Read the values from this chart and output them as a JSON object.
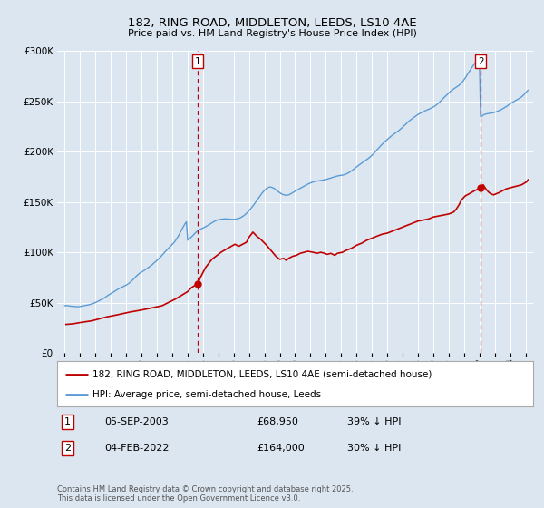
{
  "title": "182, RING ROAD, MIDDLETON, LEEDS, LS10 4AE",
  "subtitle": "Price paid vs. HM Land Registry's House Price Index (HPI)",
  "bg_color": "#dce6f0",
  "plot_bg_color": "#dce6f0",
  "hpi_color": "#5b9bd5",
  "price_color": "#c00000",
  "marker1_date_x": 2003.67,
  "marker2_date_x": 2022.08,
  "marker1_price": 68950,
  "marker2_price": 164000,
  "ylim": [
    0,
    300000
  ],
  "xlim": [
    1994.5,
    2025.5
  ],
  "yticks": [
    0,
    50000,
    100000,
    150000,
    200000,
    250000,
    300000
  ],
  "xlabel_years": [
    1995,
    1996,
    1997,
    1998,
    1999,
    2000,
    2001,
    2002,
    2003,
    2004,
    2005,
    2006,
    2007,
    2008,
    2009,
    2010,
    2011,
    2012,
    2013,
    2014,
    2015,
    2016,
    2017,
    2018,
    2019,
    2020,
    2021,
    2022,
    2023,
    2024,
    2025
  ],
  "legend_label1": "182, RING ROAD, MIDDLETON, LEEDS, LS10 4AE (semi-detached house)",
  "legend_label2": "HPI: Average price, semi-detached house, Leeds",
  "annotation1_label": "1",
  "annotation1_date": "05-SEP-2003",
  "annotation1_price_str": "£68,950",
  "annotation1_hpi": "39% ↓ HPI",
  "annotation2_label": "2",
  "annotation2_date": "04-FEB-2022",
  "annotation2_price_str": "£164,000",
  "annotation2_hpi": "30% ↓ HPI",
  "footer": "Contains HM Land Registry data © Crown copyright and database right 2025.\nThis data is licensed under the Open Government Licence v3.0.",
  "hpi_data_x": [
    1995.0,
    1995.08,
    1995.17,
    1995.25,
    1995.33,
    1995.42,
    1995.5,
    1995.58,
    1995.67,
    1995.75,
    1995.83,
    1995.92,
    1996.0,
    1996.08,
    1996.17,
    1996.25,
    1996.33,
    1996.42,
    1996.5,
    1996.58,
    1996.67,
    1996.75,
    1996.83,
    1996.92,
    1997.0,
    1997.08,
    1997.17,
    1997.25,
    1997.33,
    1997.42,
    1997.5,
    1997.58,
    1997.67,
    1997.75,
    1997.83,
    1997.92,
    1998.0,
    1998.08,
    1998.17,
    1998.25,
    1998.33,
    1998.42,
    1998.5,
    1998.58,
    1998.67,
    1998.75,
    1998.83,
    1998.92,
    1999.0,
    1999.08,
    1999.17,
    1999.25,
    1999.33,
    1999.42,
    1999.5,
    1999.58,
    1999.67,
    1999.75,
    1999.83,
    1999.92,
    2000.0,
    2000.08,
    2000.17,
    2000.25,
    2000.33,
    2000.42,
    2000.5,
    2000.58,
    2000.67,
    2000.75,
    2000.83,
    2000.92,
    2001.0,
    2001.08,
    2001.17,
    2001.25,
    2001.33,
    2001.42,
    2001.5,
    2001.58,
    2001.67,
    2001.75,
    2001.83,
    2001.92,
    2002.0,
    2002.08,
    2002.17,
    2002.25,
    2002.33,
    2002.42,
    2002.5,
    2002.58,
    2002.67,
    2002.75,
    2002.83,
    2002.92,
    2003.0,
    2003.08,
    2003.17,
    2003.25,
    2003.33,
    2003.42,
    2003.5,
    2003.58,
    2003.67,
    2003.75,
    2003.83,
    2003.92,
    2004.0,
    2004.08,
    2004.17,
    2004.25,
    2004.33,
    2004.42,
    2004.5,
    2004.58,
    2004.67,
    2004.75,
    2004.83,
    2004.92,
    2005.0,
    2005.08,
    2005.17,
    2005.25,
    2005.33,
    2005.42,
    2005.5,
    2005.58,
    2005.67,
    2005.75,
    2005.83,
    2005.92,
    2006.0,
    2006.08,
    2006.17,
    2006.25,
    2006.33,
    2006.42,
    2006.5,
    2006.58,
    2006.67,
    2006.75,
    2006.83,
    2006.92,
    2007.0,
    2007.08,
    2007.17,
    2007.25,
    2007.33,
    2007.42,
    2007.5,
    2007.58,
    2007.67,
    2007.75,
    2007.83,
    2007.92,
    2008.0,
    2008.08,
    2008.17,
    2008.25,
    2008.33,
    2008.42,
    2008.5,
    2008.58,
    2008.67,
    2008.75,
    2008.83,
    2008.92,
    2009.0,
    2009.08,
    2009.17,
    2009.25,
    2009.33,
    2009.42,
    2009.5,
    2009.58,
    2009.67,
    2009.75,
    2009.83,
    2009.92,
    2010.0,
    2010.08,
    2010.17,
    2010.25,
    2010.33,
    2010.42,
    2010.5,
    2010.58,
    2010.67,
    2010.75,
    2010.83,
    2010.92,
    2011.0,
    2011.08,
    2011.17,
    2011.25,
    2011.33,
    2011.42,
    2011.5,
    2011.58,
    2011.67,
    2011.75,
    2011.83,
    2011.92,
    2012.0,
    2012.08,
    2012.17,
    2012.25,
    2012.33,
    2012.42,
    2012.5,
    2012.58,
    2012.67,
    2012.75,
    2012.83,
    2012.92,
    2013.0,
    2013.08,
    2013.17,
    2013.25,
    2013.33,
    2013.42,
    2013.5,
    2013.58,
    2013.67,
    2013.75,
    2013.83,
    2013.92,
    2014.0,
    2014.08,
    2014.17,
    2014.25,
    2014.33,
    2014.42,
    2014.5,
    2014.58,
    2014.67,
    2014.75,
    2014.83,
    2014.92,
    2015.0,
    2015.08,
    2015.17,
    2015.25,
    2015.33,
    2015.42,
    2015.5,
    2015.58,
    2015.67,
    2015.75,
    2015.83,
    2015.92,
    2016.0,
    2016.08,
    2016.17,
    2016.25,
    2016.33,
    2016.42,
    2016.5,
    2016.58,
    2016.67,
    2016.75,
    2016.83,
    2016.92,
    2017.0,
    2017.08,
    2017.17,
    2017.25,
    2017.33,
    2017.42,
    2017.5,
    2017.58,
    2017.67,
    2017.75,
    2017.83,
    2017.92,
    2018.0,
    2018.08,
    2018.17,
    2018.25,
    2018.33,
    2018.42,
    2018.5,
    2018.58,
    2018.67,
    2018.75,
    2018.83,
    2018.92,
    2019.0,
    2019.08,
    2019.17,
    2019.25,
    2019.33,
    2019.42,
    2019.5,
    2019.58,
    2019.67,
    2019.75,
    2019.83,
    2019.92,
    2020.0,
    2020.08,
    2020.17,
    2020.25,
    2020.33,
    2020.42,
    2020.5,
    2020.58,
    2020.67,
    2020.75,
    2020.83,
    2020.92,
    2021.0,
    2021.08,
    2021.17,
    2021.25,
    2021.33,
    2021.42,
    2021.5,
    2021.58,
    2021.67,
    2021.75,
    2021.83,
    2021.92,
    2022.0,
    2022.08,
    2022.17,
    2022.25,
    2022.33,
    2022.42,
    2022.5,
    2022.58,
    2022.67,
    2022.75,
    2022.83,
    2022.92,
    2023.0,
    2023.08,
    2023.17,
    2023.25,
    2023.33,
    2023.42,
    2023.5,
    2023.58,
    2023.67,
    2023.75,
    2023.83,
    2023.92,
    2024.0,
    2024.08,
    2024.17,
    2024.25,
    2024.33,
    2024.42,
    2024.5,
    2024.58,
    2024.67,
    2024.75,
    2024.83,
    2024.92,
    2025.0,
    2025.08,
    2025.17
  ],
  "hpi_data_y": [
    47000,
    47200,
    47100,
    46900,
    46700,
    46500,
    46400,
    46300,
    46200,
    46100,
    46000,
    46100,
    46300,
    46500,
    46700,
    47000,
    47300,
    47500,
    47800,
    48000,
    48300,
    48700,
    49200,
    49700,
    50200,
    50800,
    51400,
    52000,
    52700,
    53400,
    54100,
    54900,
    55700,
    56600,
    57500,
    58300,
    59000,
    59800,
    60600,
    61400,
    62200,
    63000,
    63700,
    64400,
    65000,
    65600,
    66200,
    66800,
    67500,
    68300,
    69200,
    70200,
    71300,
    72600,
    73900,
    75200,
    76500,
    77700,
    78800,
    79700,
    80500,
    81200,
    82000,
    82800,
    83700,
    84600,
    85500,
    86500,
    87500,
    88600,
    89700,
    90800,
    92000,
    93200,
    94400,
    95700,
    97100,
    98500,
    99900,
    101300,
    102700,
    104000,
    105300,
    106500,
    107800,
    109200,
    110800,
    112600,
    114600,
    116800,
    119200,
    121600,
    124000,
    126300,
    128400,
    130300,
    112000,
    113000,
    114000,
    115200,
    116500,
    117900,
    119200,
    120400,
    121400,
    122200,
    122900,
    123500,
    124100,
    124700,
    125400,
    126100,
    126900,
    127700,
    128500,
    129300,
    130100,
    130800,
    131400,
    131900,
    132300,
    132600,
    132800,
    133000,
    133100,
    133200,
    133200,
    133100,
    133000,
    132900,
    132800,
    132700,
    132700,
    132800,
    133000,
    133300,
    133700,
    134200,
    134800,
    135600,
    136500,
    137500,
    138700,
    140000,
    141400,
    142800,
    144300,
    145900,
    147600,
    149400,
    151200,
    153100,
    154900,
    156700,
    158400,
    160000,
    161400,
    162600,
    163600,
    164300,
    164700,
    164700,
    164400,
    163800,
    163000,
    162000,
    161000,
    160000,
    159100,
    158300,
    157600,
    157100,
    156800,
    156700,
    156800,
    157100,
    157600,
    158300,
    159100,
    159900,
    160700,
    161400,
    162100,
    162800,
    163500,
    164200,
    164900,
    165600,
    166300,
    167000,
    167700,
    168300,
    168900,
    169400,
    169800,
    170200,
    170500,
    170700,
    170900,
    171100,
    171300,
    171500,
    171700,
    172000,
    172300,
    172600,
    173000,
    173400,
    173800,
    174200,
    174600,
    175000,
    175400,
    175700,
    176000,
    176200,
    176400,
    176600,
    176900,
    177300,
    177800,
    178400,
    179100,
    179900,
    180800,
    181700,
    182700,
    183700,
    184700,
    185700,
    186700,
    187700,
    188600,
    189500,
    190400,
    191200,
    192100,
    193000,
    194000,
    195100,
    196300,
    197600,
    198900,
    200300,
    201700,
    203100,
    204500,
    205900,
    207200,
    208500,
    209700,
    210800,
    211900,
    213000,
    214100,
    215200,
    216200,
    217100,
    218000,
    218900,
    219800,
    220800,
    221900,
    223000,
    224200,
    225400,
    226600,
    227800,
    229000,
    230100,
    231200,
    232200,
    233200,
    234100,
    235000,
    235900,
    236700,
    237500,
    238200,
    238900,
    239500,
    240100,
    240700,
    241200,
    241800,
    242300,
    242900,
    243500,
    244200,
    245000,
    245900,
    246900,
    248000,
    249200,
    250500,
    251800,
    253100,
    254400,
    255600,
    256800,
    258000,
    259200,
    260300,
    261300,
    262200,
    263100,
    263900,
    264800,
    265700,
    266800,
    268100,
    269600,
    271300,
    273100,
    275100,
    277100,
    279100,
    281100,
    283100,
    285000,
    286800,
    288500,
    290100,
    291600,
    293000,
    234200,
    235300,
    236200,
    236800,
    237200,
    237500,
    237700,
    237900,
    238100,
    238300,
    238600,
    239000,
    239400,
    239900,
    240400,
    241000,
    241600,
    242300,
    243000,
    243800,
    244600,
    245500,
    246400,
    247300,
    248200,
    249000,
    249800,
    250500,
    251200,
    251900,
    252600,
    253400,
    254300,
    255400,
    256700,
    258100,
    259500,
    260800
  ],
  "price_data_x": [
    1995.08,
    1995.5,
    1996.08,
    1996.75,
    1997.25,
    1997.75,
    1998.42,
    1999.17,
    2000.08,
    2001.33,
    2002.25,
    2003.0,
    2003.25,
    2003.67,
    2003.83,
    2004.17,
    2004.58,
    2005.17,
    2005.5,
    2006.08,
    2006.33,
    2006.83,
    2007.0,
    2007.25,
    2007.5,
    2007.75,
    2008.08,
    2008.42,
    2008.75,
    2009.0,
    2009.25,
    2009.42,
    2009.58,
    2009.83,
    2010.08,
    2010.33,
    2010.58,
    2010.83,
    2011.17,
    2011.42,
    2011.67,
    2011.92,
    2012.08,
    2012.33,
    2012.58,
    2012.75,
    2013.08,
    2013.33,
    2013.67,
    2014.0,
    2014.33,
    2014.67,
    2015.0,
    2015.33,
    2015.67,
    2016.0,
    2016.33,
    2016.67,
    2017.0,
    2017.33,
    2017.67,
    2018.0,
    2018.33,
    2018.67,
    2019.0,
    2019.33,
    2019.67,
    2020.0,
    2020.33,
    2020.5,
    2020.67,
    2020.83,
    2021.08,
    2021.33,
    2021.67,
    2022.08,
    2022.25,
    2022.42,
    2022.58,
    2022.75,
    2022.92,
    2023.08,
    2023.25,
    2023.5,
    2023.75,
    2024.0,
    2024.25,
    2024.5,
    2024.75,
    2025.08,
    2025.17
  ],
  "price_data_y": [
    28500,
    29000,
    30500,
    32000,
    34000,
    36000,
    38000,
    40500,
    43000,
    47000,
    54000,
    61000,
    65000,
    68950,
    75000,
    85000,
    93000,
    100000,
    103000,
    108000,
    106000,
    110000,
    115000,
    120000,
    116000,
    113000,
    108000,
    102000,
    96000,
    93000,
    94000,
    92000,
    94000,
    96000,
    97000,
    99000,
    100000,
    101000,
    100000,
    99000,
    100000,
    99000,
    98000,
    99000,
    97000,
    99000,
    100000,
    102000,
    104000,
    107000,
    109000,
    112000,
    114000,
    116000,
    118000,
    119000,
    121000,
    123000,
    125000,
    127000,
    129000,
    131000,
    132000,
    133000,
    135000,
    136000,
    137000,
    138000,
    140000,
    143000,
    147000,
    152000,
    156000,
    158000,
    161000,
    164000,
    167000,
    163000,
    160000,
    158000,
    157000,
    158000,
    159000,
    161000,
    163000,
    164000,
    165000,
    166000,
    167000,
    170000,
    172000
  ]
}
